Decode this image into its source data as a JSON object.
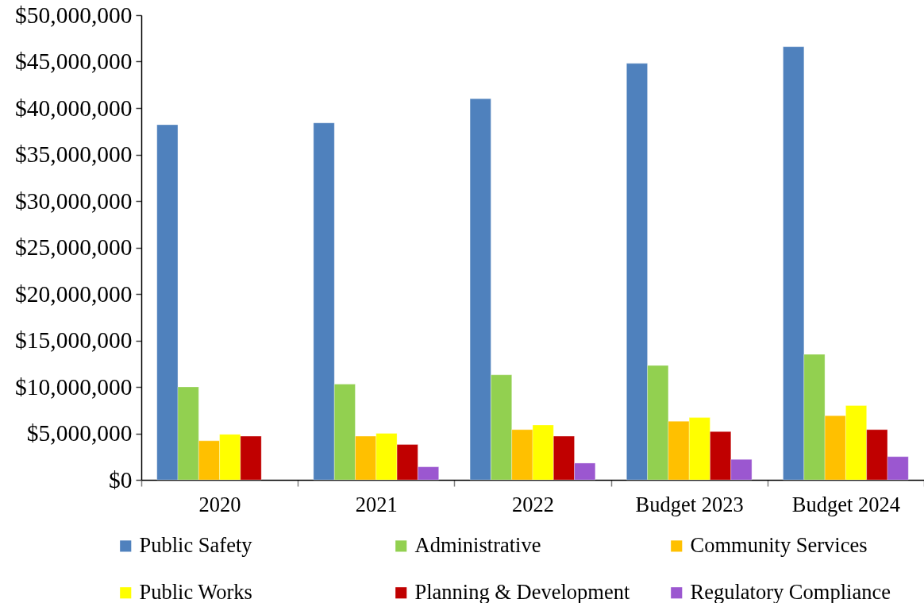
{
  "chart_data": {
    "type": "bar",
    "categories": [
      "2020",
      "2021",
      "2022",
      "Budget 2023",
      "Budget 2024"
    ],
    "series": [
      {
        "name": "Public Safety",
        "color": "#4f81bd",
        "values": [
          38200000,
          38400000,
          41000000,
          44800000,
          46600000
        ]
      },
      {
        "name": "Administrative",
        "color": "#92d050",
        "values": [
          10000000,
          10300000,
          11300000,
          12300000,
          13500000
        ]
      },
      {
        "name": "Community Services",
        "color": "#ffc000",
        "values": [
          4200000,
          4700000,
          5400000,
          6300000,
          6900000
        ]
      },
      {
        "name": "Public Works",
        "color": "#ffff00",
        "values": [
          4900000,
          5000000,
          5900000,
          6700000,
          8000000
        ]
      },
      {
        "name": "Planning & Development",
        "color": "#c00000",
        "values": [
          4700000,
          3800000,
          4700000,
          5200000,
          5400000
        ]
      },
      {
        "name": "Regulatory Compliance",
        "color": "#9b57d0",
        "values": [
          null,
          1400000,
          1800000,
          2200000,
          2500000
        ]
      }
    ],
    "ylim": [
      0,
      50000000
    ],
    "yticks": [
      {
        "value": 0,
        "label": "$0"
      },
      {
        "value": 5000000,
        "label": "$5,000,000"
      },
      {
        "value": 10000000,
        "label": "$10,000,000"
      },
      {
        "value": 15000000,
        "label": "$15,000,000"
      },
      {
        "value": 20000000,
        "label": "$20,000,000"
      },
      {
        "value": 25000000,
        "label": "$25,000,000"
      },
      {
        "value": 30000000,
        "label": "$30,000,000"
      },
      {
        "value": 35000000,
        "label": "$35,000,000"
      },
      {
        "value": 40000000,
        "label": "$40,000,000"
      },
      {
        "value": 45000000,
        "label": "$45,000,000"
      },
      {
        "value": 50000000,
        "label": "$50,000,000"
      }
    ],
    "legend": "bottom"
  }
}
